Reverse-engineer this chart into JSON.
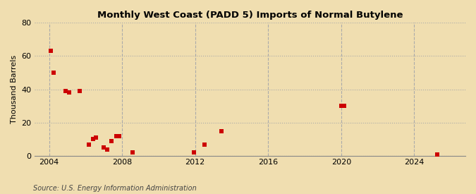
{
  "title": "Monthly West Coast (PADD 5) Imports of Normal Butylene",
  "ylabel": "Thousand Barrels",
  "source": "Source: U.S. Energy Information Administration",
  "background_color": "#f0deb0",
  "plot_bg_color": "#f0deb0",
  "marker_color": "#cc0000",
  "marker_size": 4,
  "ylim": [
    0,
    80
  ],
  "yticks": [
    0,
    20,
    40,
    60,
    80
  ],
  "xlim_start": 2003.2,
  "xlim_end": 2026.8,
  "xticks": [
    2004,
    2008,
    2012,
    2016,
    2020,
    2024
  ],
  "data_points": [
    [
      2004.08,
      63
    ],
    [
      2004.25,
      50
    ],
    [
      2004.92,
      39
    ],
    [
      2005.08,
      38
    ],
    [
      2005.67,
      39
    ],
    [
      2006.17,
      7
    ],
    [
      2006.42,
      10
    ],
    [
      2006.58,
      11
    ],
    [
      2007.0,
      5
    ],
    [
      2007.17,
      4
    ],
    [
      2007.42,
      9
    ],
    [
      2007.67,
      12
    ],
    [
      2007.83,
      12
    ],
    [
      2008.58,
      2
    ],
    [
      2011.92,
      2
    ],
    [
      2012.5,
      7
    ],
    [
      2013.42,
      15
    ],
    [
      2020.0,
      30
    ],
    [
      2020.17,
      30
    ],
    [
      2025.25,
      1
    ]
  ]
}
